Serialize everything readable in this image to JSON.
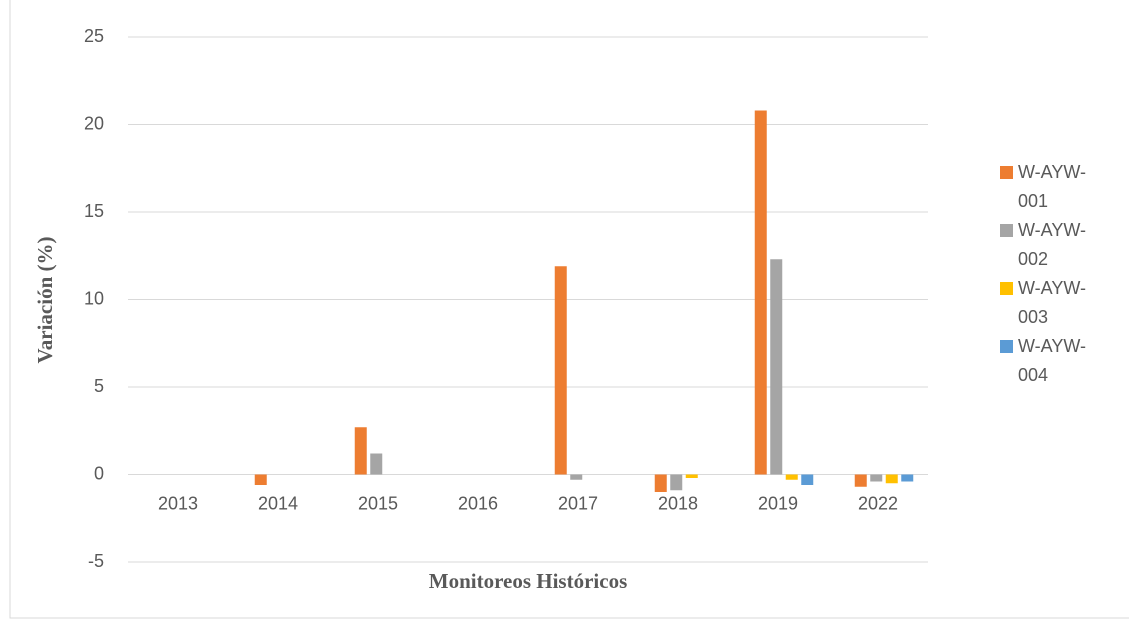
{
  "chart_data": {
    "type": "bar",
    "y_label": "Variación (%)",
    "x_label": "Monitoreos Históricos",
    "categories": [
      "2013",
      "2014",
      "2015",
      "2016",
      "2017",
      "2018",
      "2019",
      "2022"
    ],
    "series": [
      {
        "name": "W-AYW-001",
        "color": "#ed7d31",
        "values": [
          0,
          -0.6,
          2.7,
          0,
          11.9,
          -1.0,
          20.8,
          -0.7
        ]
      },
      {
        "name": "W-AYW-002",
        "color": "#a5a5a5",
        "values": [
          0,
          0,
          1.2,
          0,
          -0.3,
          -0.9,
          12.3,
          -0.4
        ]
      },
      {
        "name": "W-AYW-003",
        "color": "#ffc000",
        "values": [
          0,
          0,
          0,
          0,
          0,
          -0.2,
          -0.3,
          -0.5
        ]
      },
      {
        "name": "W-AYW-004",
        "color": "#5b9bd5",
        "values": [
          0,
          0,
          0,
          0,
          0,
          0,
          -0.6,
          -0.4
        ]
      }
    ],
    "ylim": [
      -5,
      25
    ],
    "yticks": [
      -5,
      0,
      5,
      10,
      15,
      20,
      25
    ],
    "grid": true,
    "legend": "right"
  }
}
